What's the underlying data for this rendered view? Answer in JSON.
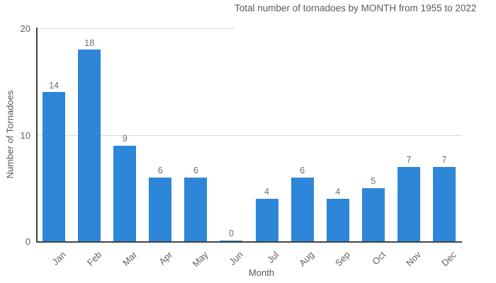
{
  "chart": {
    "title": "Total number of tornadoes by MONTH from 1955 to 2022",
    "x_axis_label": "Month",
    "y_axis_label": "Number of Tornadoes"
  },
  "chart_data": {
    "type": "bar",
    "title": "Total number of tornadoes by MONTH from 1955 to 2022",
    "xlabel": "Month",
    "ylabel": "Number of Tornadoes",
    "categories": [
      "Jan",
      "Feb",
      "Mar",
      "Apr",
      "May",
      "Jun",
      "Jul",
      "Aug",
      "Sep",
      "Oct",
      "Nov",
      "Dec"
    ],
    "values": [
      14,
      18,
      9,
      6,
      6,
      0,
      4,
      6,
      4,
      5,
      7,
      7
    ],
    "ylim": [
      0,
      20
    ],
    "yticks": [
      0,
      10,
      20
    ],
    "grid": true,
    "legend": false,
    "value_labels_shown": true,
    "bar_color": "#2E86D8",
    "gridline_color": "#d9d9d9",
    "axis_line_color": "#424242",
    "label_color": "#616161"
  }
}
